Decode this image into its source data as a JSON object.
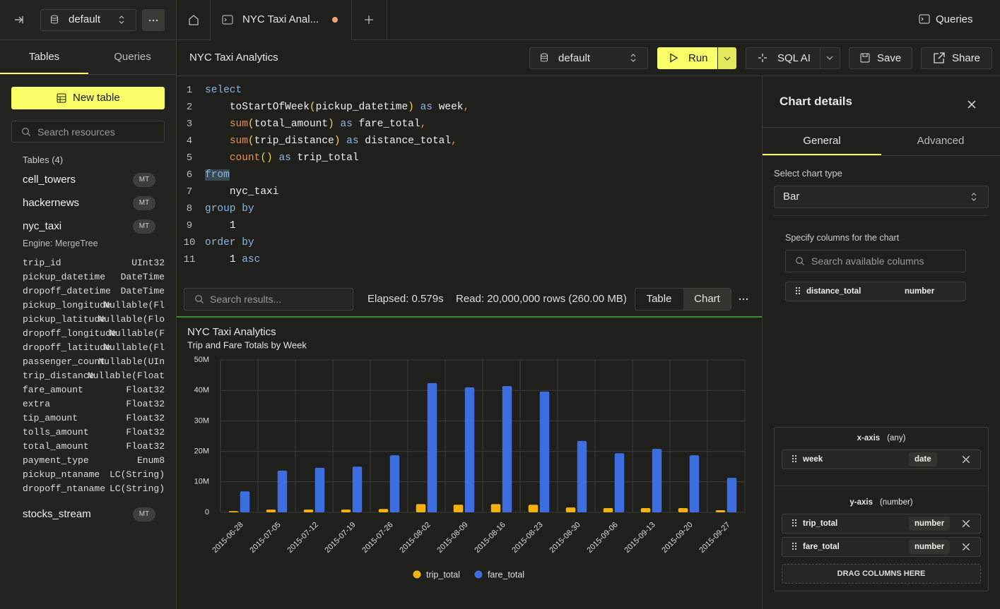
{
  "topbar": {
    "database": "default",
    "tab_title": "NYC Taxi Anal...",
    "queries": "Queries"
  },
  "sidebar": {
    "tabs": [
      "Tables",
      "Queries"
    ],
    "new_table": "New table",
    "search_placeholder": "Search resources",
    "tables_heading": "Tables (4)",
    "tables": [
      {
        "name": "cell_towers",
        "badge": "MT"
      },
      {
        "name": "hackernews",
        "badge": "MT"
      },
      {
        "name": "nyc_taxi",
        "badge": "MT",
        "engine": "Engine: MergeTree",
        "columns": [
          [
            "trip_id",
            "UInt32"
          ],
          [
            "pickup_datetime",
            "DateTime"
          ],
          [
            "dropoff_datetime",
            "DateTime"
          ],
          [
            "pickup_longitude",
            "Nullable(Fl"
          ],
          [
            "pickup_latitude",
            "Nullable(Flo"
          ],
          [
            "dropoff_longitude",
            "Nullable(F"
          ],
          [
            "dropoff_latitude",
            "Nullable(Fl"
          ],
          [
            "passenger_count",
            "Nullable(UIn"
          ],
          [
            "trip_distance",
            "Nullable(Float"
          ],
          [
            "fare_amount",
            "Float32"
          ],
          [
            "extra",
            "Float32"
          ],
          [
            "tip_amount",
            "Float32"
          ],
          [
            "tolls_amount",
            "Float32"
          ],
          [
            "total_amount",
            "Float32"
          ],
          [
            "payment_type",
            "Enum8"
          ],
          [
            "pickup_ntaname",
            "LC(String)"
          ],
          [
            "dropoff_ntaname",
            "LC(String)"
          ]
        ]
      },
      {
        "name": "stocks_stream",
        "badge": "MT"
      }
    ]
  },
  "toolbar": {
    "query_name": "NYC Taxi Analytics",
    "database": "default",
    "run": "Run",
    "sql_ai": "SQL AI",
    "save": "Save",
    "share": "Share"
  },
  "editor": {
    "lines": [
      {
        "n": 1,
        "code": "select"
      },
      {
        "n": 2,
        "code": "    toStartOfWeek(pickup_datetime) as week,"
      },
      {
        "n": 3,
        "code": "    sum(total_amount) as fare_total,"
      },
      {
        "n": 4,
        "code": "    sum(trip_distance) as distance_total,"
      },
      {
        "n": 5,
        "code": "    count() as trip_total"
      },
      {
        "n": 6,
        "code": "from"
      },
      {
        "n": 7,
        "code": "    nyc_taxi"
      },
      {
        "n": 8,
        "code": "group by"
      },
      {
        "n": 9,
        "code": "    1"
      },
      {
        "n": 10,
        "code": "order by"
      },
      {
        "n": 11,
        "code": "    1 asc"
      }
    ]
  },
  "results": {
    "search_placeholder": "Search results...",
    "elapsed": "Elapsed: 0.579s",
    "read": "Read: 20,000,000 rows (260.00 MB)",
    "views": [
      "Table",
      "Chart"
    ]
  },
  "chart_data": {
    "type": "bar",
    "title": "NYC Taxi Analytics",
    "subtitle": "Trip and Fare Totals by Week",
    "categories": [
      "2015-06-28",
      "2015-07-05",
      "2015-07-12",
      "2015-07-19",
      "2015-07-26",
      "2015-08-02",
      "2015-08-09",
      "2015-08-16",
      "2015-08-23",
      "2015-08-30",
      "2015-09-06",
      "2015-09-13",
      "2015-09-20",
      "2015-09-27"
    ],
    "series": [
      {
        "name": "trip_total",
        "color": "#f5b10f",
        "values": [
          400000,
          900000,
          900000,
          900000,
          1100000,
          2700000,
          2500000,
          2700000,
          2500000,
          1600000,
          1400000,
          1400000,
          1400000,
          700000
        ]
      },
      {
        "name": "fare_total",
        "color": "#3d6ee0",
        "values": [
          6900000,
          13700000,
          14600000,
          15000000,
          18700000,
          42400000,
          41000000,
          41400000,
          39600000,
          23400000,
          19400000,
          20800000,
          18700000,
          11300000
        ]
      }
    ],
    "ylim": [
      0,
      50000000
    ],
    "yticks": [
      0,
      {
        "value": 10000000,
        "label": "10M"
      },
      {
        "value": 20000000,
        "label": "20M"
      },
      {
        "value": 30000000,
        "label": "30M"
      },
      {
        "value": 40000000,
        "label": "40M"
      },
      {
        "value": 50000000,
        "label": "50M"
      }
    ],
    "grid": true,
    "legend": "bottom"
  },
  "chart_panel": {
    "title": "Chart details",
    "tabs": [
      "General",
      "Advanced"
    ],
    "chart_type_label": "Select chart type",
    "chart_type": "Bar",
    "columns_label": "Specify columns for the chart",
    "columns_search": "Search available columns",
    "available": [
      {
        "name": "distance_total",
        "type": "number"
      }
    ],
    "x_axis": {
      "label": "x-axis",
      "hint": "(any)",
      "columns": [
        {
          "name": "week",
          "type": "date"
        }
      ]
    },
    "y_axis": {
      "label": "y-axis",
      "hint": "(number)",
      "columns": [
        {
          "name": "trip_total",
          "type": "number"
        },
        {
          "name": "fare_total",
          "type": "number"
        }
      ]
    },
    "drop_zone": "DRAG COLUMNS HERE"
  }
}
